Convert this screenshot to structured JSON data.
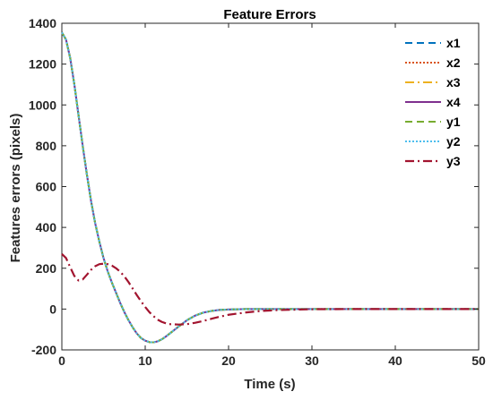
{
  "chart_data": {
    "type": "line",
    "title": "Feature Errors",
    "xlabel": "Time (s)",
    "ylabel": "Features errors (pixels)",
    "xlim": [
      0,
      50
    ],
    "ylim": [
      -200,
      1400
    ],
    "xticks": [
      0,
      10,
      20,
      30,
      40,
      50
    ],
    "yticks": [
      -200,
      0,
      200,
      400,
      600,
      800,
      1000,
      1200,
      1400
    ],
    "grid": false,
    "legend_position": "top-right",
    "x": [
      0,
      0.5,
      1,
      1.5,
      2,
      2.5,
      3,
      3.5,
      4,
      4.5,
      5,
      5.5,
      6,
      6.5,
      7,
      7.5,
      8,
      8.5,
      9,
      9.5,
      10,
      10.5,
      11,
      11.5,
      12,
      12.5,
      13,
      14,
      15,
      16,
      17,
      18,
      19,
      20,
      22,
      24,
      26,
      28,
      30,
      35,
      40,
      45,
      50
    ],
    "series": [
      {
        "name": "x1",
        "color": "#0072BD",
        "dash": "8,5",
        "width": 2,
        "values": [
          1355,
          1320,
          1230,
          1100,
          950,
          800,
          660,
          530,
          420,
          330,
          250,
          185,
          130,
          80,
          30,
          -15,
          -55,
          -90,
          -120,
          -142,
          -155,
          -162,
          -163,
          -158,
          -148,
          -134,
          -118,
          -86,
          -55,
          -32,
          -17,
          -9,
          -4,
          -2,
          0,
          0,
          0,
          0,
          0,
          0,
          0,
          0,
          0
        ]
      },
      {
        "name": "x2",
        "color": "#D95319",
        "dash": "2,2",
        "width": 2,
        "values": [
          1355,
          1320,
          1230,
          1100,
          950,
          800,
          660,
          530,
          420,
          330,
          250,
          185,
          130,
          80,
          30,
          -15,
          -55,
          -90,
          -120,
          -142,
          -155,
          -162,
          -163,
          -158,
          -148,
          -134,
          -118,
          -86,
          -55,
          -32,
          -17,
          -9,
          -4,
          -2,
          0,
          0,
          0,
          0,
          0,
          0,
          0,
          0,
          0
        ]
      },
      {
        "name": "x3",
        "color": "#EDB120",
        "dash": "10,4,2,4",
        "width": 2,
        "values": [
          1355,
          1320,
          1230,
          1100,
          950,
          800,
          660,
          530,
          420,
          330,
          250,
          185,
          130,
          80,
          30,
          -15,
          -55,
          -90,
          -120,
          -142,
          -155,
          -162,
          -163,
          -158,
          -148,
          -134,
          -118,
          -86,
          -55,
          -32,
          -17,
          -9,
          -4,
          -2,
          0,
          0,
          0,
          0,
          0,
          0,
          0,
          0,
          0
        ]
      },
      {
        "name": "x4",
        "color": "#7E2F8E",
        "dash": "",
        "width": 2,
        "values": [
          1355,
          1320,
          1230,
          1100,
          950,
          800,
          660,
          530,
          420,
          330,
          250,
          185,
          130,
          80,
          30,
          -15,
          -55,
          -90,
          -120,
          -142,
          -155,
          -162,
          -163,
          -158,
          -148,
          -134,
          -118,
          -86,
          -55,
          -32,
          -17,
          -9,
          -4,
          -2,
          0,
          0,
          0,
          0,
          0,
          0,
          0,
          0,
          0
        ]
      },
      {
        "name": "y1",
        "color": "#77AC30",
        "dash": "8,5",
        "width": 2,
        "values": [
          1355,
          1320,
          1230,
          1100,
          950,
          800,
          660,
          530,
          420,
          330,
          250,
          185,
          130,
          80,
          30,
          -15,
          -55,
          -90,
          -120,
          -142,
          -155,
          -162,
          -163,
          -158,
          -148,
          -134,
          -118,
          -86,
          -55,
          -32,
          -17,
          -9,
          -4,
          -2,
          0,
          0,
          0,
          0,
          0,
          0,
          0,
          0,
          0
        ]
      },
      {
        "name": "y2",
        "color": "#4DBEEE",
        "dash": "2,2",
        "width": 2,
        "values": [
          1355,
          1320,
          1230,
          1100,
          950,
          800,
          660,
          530,
          420,
          330,
          250,
          185,
          130,
          80,
          30,
          -15,
          -55,
          -90,
          -120,
          -142,
          -155,
          -162,
          -163,
          -158,
          -148,
          -134,
          -118,
          -86,
          -55,
          -32,
          -17,
          -9,
          -4,
          -2,
          0,
          0,
          0,
          0,
          0,
          0,
          0,
          0,
          0
        ]
      },
      {
        "name": "y3",
        "color": "#A2142F",
        "dash": "10,4,2,4",
        "width": 2.2,
        "values": [
          270,
          250,
          205,
          162,
          140,
          145,
          168,
          192,
          210,
          220,
          222,
          220,
          213,
          200,
          183,
          160,
          132,
          100,
          68,
          38,
          10,
          -15,
          -35,
          -52,
          -63,
          -70,
          -74,
          -76,
          -74,
          -67,
          -58,
          -47,
          -37,
          -28,
          -17,
          -9,
          -5,
          -3,
          -1,
          0,
          0,
          0,
          0
        ]
      }
    ]
  }
}
